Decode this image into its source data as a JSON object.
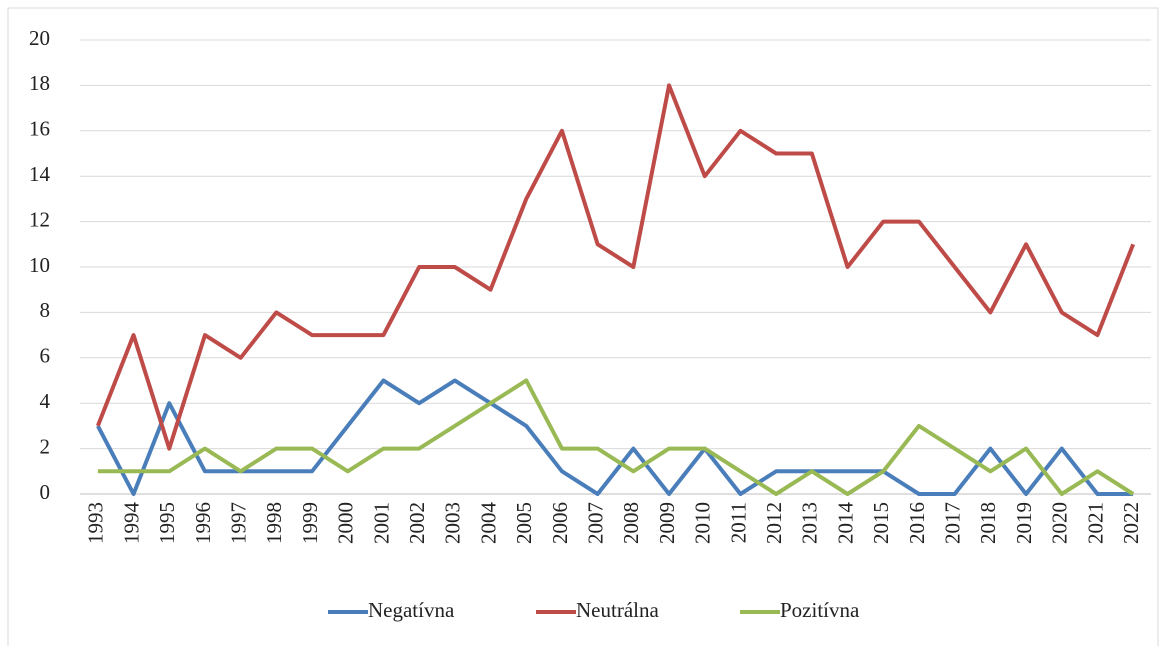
{
  "chart_data": {
    "type": "line",
    "categories": [
      "1993",
      "1994",
      "1995",
      "1996",
      "1997",
      "1998",
      "1999",
      "2000",
      "2001",
      "2002",
      "2003",
      "2004",
      "2005",
      "2006",
      "2007",
      "2008",
      "2009",
      "2010",
      "2011",
      "2012",
      "2013",
      "2014",
      "2015",
      "2016",
      "2017",
      "2018",
      "2019",
      "2020",
      "2021",
      "2022"
    ],
    "series": [
      {
        "name": "Negatívna",
        "color": "#4a7ebb",
        "values": [
          3,
          0,
          4,
          1,
          1,
          1,
          1,
          3,
          5,
          4,
          5,
          4,
          3,
          1,
          0,
          2,
          0,
          2,
          0,
          1,
          1,
          1,
          1,
          0,
          0,
          2,
          0,
          2,
          0,
          0
        ]
      },
      {
        "name": "Neutrálna",
        "color": "#be4b48",
        "values": [
          3,
          7,
          2,
          7,
          6,
          8,
          7,
          7,
          7,
          10,
          10,
          9,
          13,
          16,
          11,
          10,
          18,
          14,
          16,
          15,
          15,
          10,
          12,
          12,
          10,
          8,
          11,
          8,
          7,
          11
        ]
      },
      {
        "name": "Pozitívna",
        "color": "#98b954",
        "values": [
          1,
          1,
          1,
          2,
          1,
          2,
          2,
          1,
          2,
          2,
          3,
          4,
          5,
          2,
          2,
          1,
          2,
          2,
          1,
          0,
          1,
          0,
          1,
          3,
          2,
          1,
          2,
          0,
          1,
          0
        ]
      }
    ],
    "ylim": [
      0,
      20
    ],
    "yticks": [
      0,
      2,
      4,
      6,
      8,
      10,
      12,
      14,
      16,
      18,
      20
    ],
    "grid": true,
    "legend": "bottom"
  }
}
